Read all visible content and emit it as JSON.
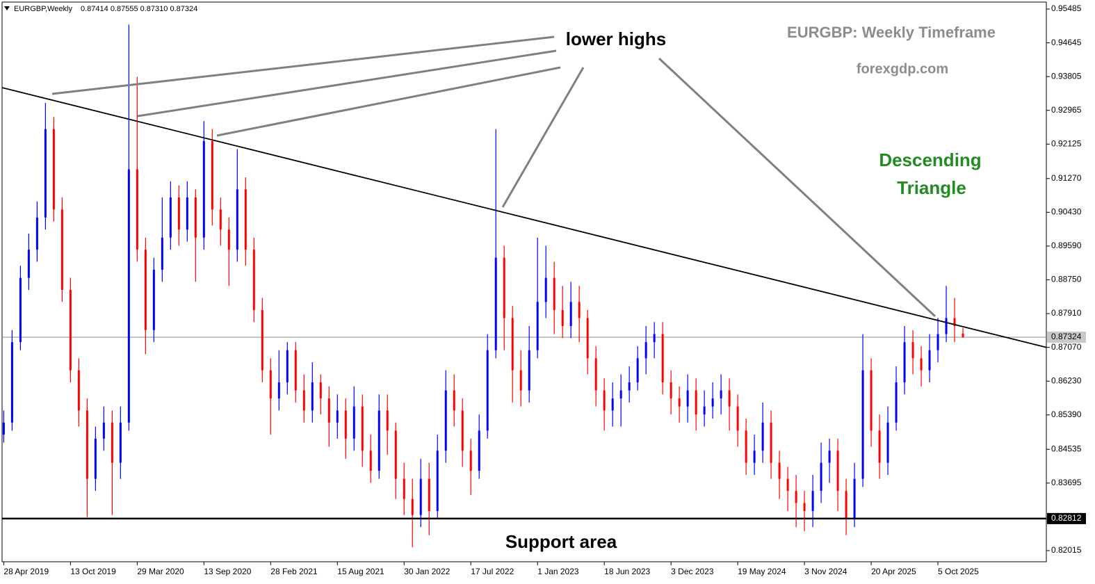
{
  "chart_data": {
    "type": "candlestick",
    "title": "EURGBP,Weekly",
    "ohlc_label": "0.87414 0.87555 0.87310 0.87324",
    "up_color": "#0000ff",
    "down_color": "#ff0000",
    "open": [
      0.849,
      0.852,
      0.872,
      0.888,
      0.895,
      0.903,
      0.925,
      0.905,
      0.885,
      0.865,
      0.855,
      0.838,
      0.848,
      0.852,
      0.842,
      0.852,
      0.915,
      0.895,
      0.875,
      0.89,
      0.898,
      0.908,
      0.9,
      0.908,
      0.898,
      0.922,
      0.905,
      0.9,
      0.895,
      0.91,
      0.895,
      0.88,
      0.865,
      0.858,
      0.862,
      0.87,
      0.86,
      0.855,
      0.862,
      0.858,
      0.852,
      0.855,
      0.848,
      0.856,
      0.845,
      0.84,
      0.855,
      0.85,
      0.838,
      0.833,
      0.829,
      0.838,
      0.83,
      0.845,
      0.86,
      0.855,
      0.845,
      0.84,
      0.85,
      0.87,
      0.893,
      0.878,
      0.865,
      0.86,
      0.87,
      0.882,
      0.888,
      0.88,
      0.876,
      0.882,
      0.878,
      0.868,
      0.86,
      0.855,
      0.858,
      0.86,
      0.862,
      0.868,
      0.872,
      0.874,
      0.862,
      0.858,
      0.856,
      0.86,
      0.854,
      0.856,
      0.858,
      0.86,
      0.856,
      0.85,
      0.842,
      0.845,
      0.852,
      0.842,
      0.838,
      0.835,
      0.832,
      0.83,
      0.835,
      0.842,
      0.845,
      0.835,
      0.828,
      0.838,
      0.865,
      0.85,
      0.842,
      0.852,
      0.862,
      0.872,
      0.868,
      0.865,
      0.87,
      0.874,
      0.878,
      0.87414
    ],
    "high": [
      0.855,
      0.875,
      0.891,
      0.899,
      0.907,
      0.9315,
      0.928,
      0.908,
      0.888,
      0.868,
      0.858,
      0.851,
      0.856,
      0.855,
      0.856,
      0.951,
      0.938,
      0.898,
      0.893,
      0.908,
      0.912,
      0.911,
      0.912,
      0.91,
      0.927,
      0.925,
      0.908,
      0.903,
      0.92,
      0.913,
      0.898,
      0.883,
      0.868,
      0.87,
      0.872,
      0.872,
      0.864,
      0.867,
      0.864,
      0.861,
      0.859,
      0.858,
      0.861,
      0.859,
      0.849,
      0.859,
      0.859,
      0.852,
      0.842,
      0.838,
      0.843,
      0.842,
      0.849,
      0.865,
      0.864,
      0.858,
      0.848,
      0.854,
      0.874,
      0.925,
      0.896,
      0.881,
      0.87,
      0.876,
      0.898,
      0.896,
      0.892,
      0.886,
      0.887,
      0.886,
      0.88,
      0.871,
      0.863,
      0.862,
      0.864,
      0.866,
      0.871,
      0.876,
      0.877,
      0.877,
      0.865,
      0.861,
      0.864,
      0.863,
      0.86,
      0.862,
      0.864,
      0.863,
      0.859,
      0.853,
      0.849,
      0.857,
      0.855,
      0.845,
      0.841,
      0.839,
      0.835,
      0.839,
      0.847,
      0.848,
      0.848,
      0.838,
      0.842,
      0.874,
      0.868,
      0.854,
      0.856,
      0.866,
      0.876,
      0.875,
      0.871,
      0.874,
      0.878,
      0.886,
      0.883,
      0.87555
    ],
    "low": [
      0.847,
      0.85,
      0.87,
      0.885,
      0.892,
      0.9,
      0.902,
      0.882,
      0.862,
      0.851,
      0.8285,
      0.835,
      0.845,
      0.829,
      0.838,
      0.85,
      0.892,
      0.869,
      0.872,
      0.887,
      0.895,
      0.896,
      0.897,
      0.887,
      0.895,
      0.901,
      0.896,
      0.886,
      0.892,
      0.891,
      0.877,
      0.862,
      0.849,
      0.855,
      0.859,
      0.857,
      0.852,
      0.852,
      0.854,
      0.846,
      0.848,
      0.843,
      0.845,
      0.841,
      0.837,
      0.838,
      0.844,
      0.833,
      0.829,
      0.821,
      0.826,
      0.824,
      0.828,
      0.842,
      0.851,
      0.841,
      0.834,
      0.838,
      0.848,
      0.868,
      0.87,
      0.857,
      0.856,
      0.857,
      0.868,
      0.878,
      0.874,
      0.873,
      0.873,
      0.872,
      0.864,
      0.856,
      0.85,
      0.851,
      0.851,
      0.857,
      0.86,
      0.864,
      0.868,
      0.859,
      0.854,
      0.852,
      0.852,
      0.85,
      0.851,
      0.853,
      0.854,
      0.85,
      0.846,
      0.839,
      0.839,
      0.842,
      0.838,
      0.833,
      0.83,
      0.826,
      0.825,
      0.826,
      0.832,
      0.837,
      0.83,
      0.824,
      0.826,
      0.836,
      0.846,
      0.838,
      0.839,
      0.85,
      0.859,
      0.864,
      0.861,
      0.862,
      0.867,
      0.872,
      0.872,
      0.8731
    ],
    "close": [
      0.852,
      0.872,
      0.888,
      0.895,
      0.903,
      0.925,
      0.905,
      0.885,
      0.865,
      0.855,
      0.838,
      0.848,
      0.852,
      0.842,
      0.852,
      0.915,
      0.895,
      0.875,
      0.89,
      0.898,
      0.908,
      0.9,
      0.908,
      0.898,
      0.922,
      0.905,
      0.9,
      0.895,
      0.91,
      0.895,
      0.88,
      0.865,
      0.858,
      0.862,
      0.87,
      0.86,
      0.855,
      0.862,
      0.858,
      0.852,
      0.855,
      0.848,
      0.856,
      0.845,
      0.84,
      0.855,
      0.85,
      0.838,
      0.833,
      0.829,
      0.838,
      0.83,
      0.845,
      0.86,
      0.855,
      0.845,
      0.84,
      0.85,
      0.87,
      0.893,
      0.878,
      0.865,
      0.86,
      0.87,
      0.882,
      0.888,
      0.88,
      0.876,
      0.882,
      0.878,
      0.868,
      0.86,
      0.855,
      0.858,
      0.86,
      0.862,
      0.868,
      0.872,
      0.874,
      0.862,
      0.858,
      0.856,
      0.86,
      0.854,
      0.856,
      0.858,
      0.86,
      0.856,
      0.85,
      0.842,
      0.845,
      0.852,
      0.842,
      0.838,
      0.835,
      0.832,
      0.83,
      0.835,
      0.842,
      0.845,
      0.835,
      0.828,
      0.838,
      0.865,
      0.85,
      0.842,
      0.852,
      0.862,
      0.872,
      0.868,
      0.865,
      0.87,
      0.874,
      0.878,
      0.876,
      0.87324
    ],
    "ylim": [
      0.81738,
      0.95658
    ],
    "yticks": [
      0.95485,
      0.94645,
      0.93805,
      0.92965,
      0.92125,
      {
        "value": 0.9127,
        "label": "0.91270"
      },
      {
        "value": 0.9043,
        "label": "0.90430"
      },
      {
        "value": 0.8959,
        "label": "0.89590"
      },
      {
        "value": 0.8875,
        "label": "0.88750"
      },
      {
        "value": 0.8791,
        "label": "0.87910"
      },
      {
        "value": 0.8707,
        "label": "0.87070"
      },
      {
        "value": 0.8623,
        "label": "0.86230"
      },
      {
        "value": 0.8539,
        "label": "0.85390"
      },
      0.84535,
      0.83695,
      0.82015
    ],
    "xlim": [
      -0.2,
      125
    ],
    "xticks": [
      {
        "value": 0,
        "label": "28 Apr 2019"
      },
      {
        "value": 8,
        "label": "13 Oct 2019"
      },
      {
        "value": 16,
        "label": "29 Mar 2020"
      },
      {
        "value": 24,
        "label": "13 Sep 2020"
      },
      {
        "value": 32,
        "label": "28 Feb 2021"
      },
      {
        "value": 40,
        "label": "15 Aug 2021"
      },
      {
        "value": 48,
        "label": "30 Jan 2022"
      },
      {
        "value": 56,
        "label": "17 Jul 2022"
      },
      {
        "value": 64,
        "label": "1 Jan 2023"
      },
      {
        "value": 72,
        "label": "18 Jun 2023"
      },
      {
        "value": 80,
        "label": "3 Dec 2023"
      },
      {
        "value": 88,
        "label": "19 May 2024"
      },
      {
        "value": 96,
        "label": "3 Nov 2024"
      },
      {
        "value": 104,
        "label": "20 Apr 2025"
      },
      {
        "value": 112,
        "label": "5 Oct 2025"
      }
    ],
    "price_line": 0.87324,
    "support_line": 0.82812,
    "trendline": [
      0.9353,
      0.8707
    ],
    "annotations": {
      "lower_highs": "lower highs",
      "heading": "EURGBP: Weekly Timeframe",
      "site": "forexgdp.com",
      "pattern": [
        "Descending",
        "Triangle"
      ],
      "support": "Support area"
    }
  }
}
